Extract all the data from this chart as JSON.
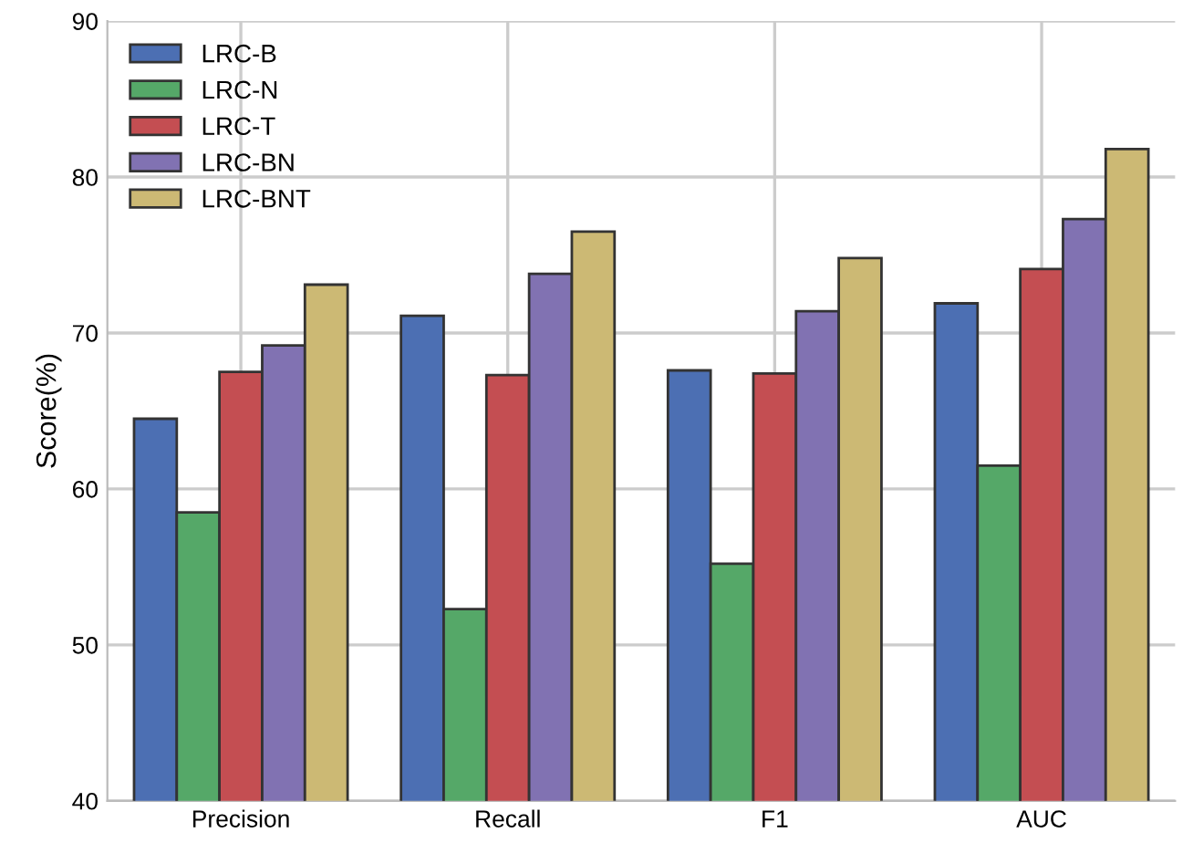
{
  "chart_data": {
    "type": "bar",
    "ylabel": "Score(%)",
    "categories": [
      "Precision",
      "Recall",
      "F1",
      "AUC"
    ],
    "series": [
      {
        "name": "LRC-B",
        "color": "#4c6fb3",
        "values": [
          64.5,
          71.1,
          67.6,
          71.9
        ]
      },
      {
        "name": "LRC-N",
        "color": "#55a868",
        "values": [
          58.5,
          52.3,
          55.2,
          61.5
        ]
      },
      {
        "name": "LRC-T",
        "color": "#c44e52",
        "values": [
          67.5,
          67.3,
          67.4,
          74.1
        ]
      },
      {
        "name": "LRC-BN",
        "color": "#8172b2",
        "values": [
          69.2,
          73.8,
          71.4,
          77.3
        ]
      },
      {
        "name": "LRC-BNT",
        "color": "#ccb974",
        "values": [
          73.1,
          76.5,
          74.8,
          81.8
        ]
      }
    ],
    "ylim": [
      40,
      90
    ],
    "yticks": [
      40,
      50,
      60,
      70,
      80,
      90
    ],
    "grid": true,
    "legend": "top left"
  }
}
